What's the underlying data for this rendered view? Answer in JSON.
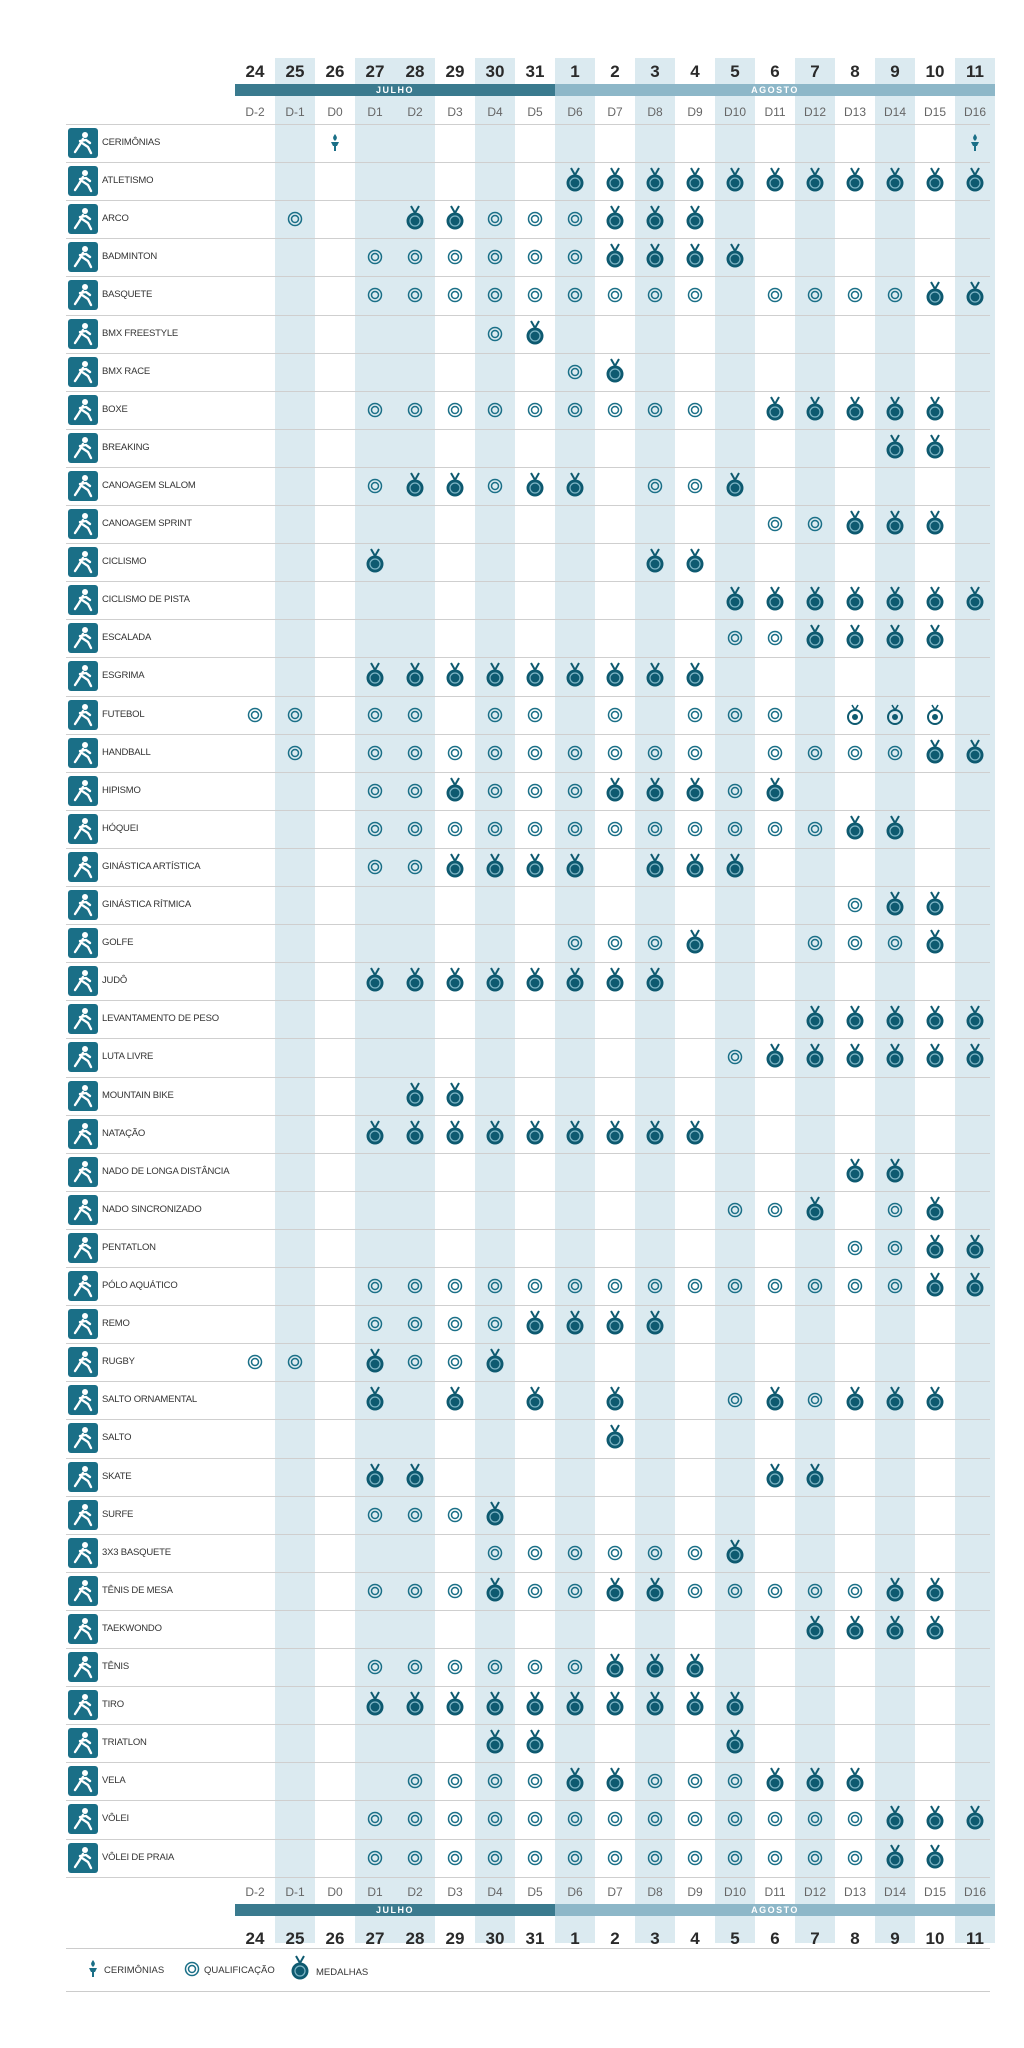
{
  "months": {
    "july": "JULHO",
    "august": "AGOSTO"
  },
  "days": [
    {
      "num": "24",
      "d": "D-2"
    },
    {
      "num": "25",
      "d": "D-1"
    },
    {
      "num": "26",
      "d": "D0"
    },
    {
      "num": "27",
      "d": "D1"
    },
    {
      "num": "28",
      "d": "D2"
    },
    {
      "num": "29",
      "d": "D3"
    },
    {
      "num": "30",
      "d": "D4"
    },
    {
      "num": "31",
      "d": "D5"
    },
    {
      "num": "1",
      "d": "D6"
    },
    {
      "num": "2",
      "d": "D7"
    },
    {
      "num": "3",
      "d": "D8"
    },
    {
      "num": "4",
      "d": "D9"
    },
    {
      "num": "5",
      "d": "D10"
    },
    {
      "num": "6",
      "d": "D11"
    },
    {
      "num": "7",
      "d": "D12"
    },
    {
      "num": "8",
      "d": "D13"
    },
    {
      "num": "9",
      "d": "D14"
    },
    {
      "num": "10",
      "d": "D15"
    },
    {
      "num": "11",
      "d": "D16"
    }
  ],
  "sports": [
    {
      "name": "CERIMÔNIAS",
      "icon": "ceremony-torch-icon",
      "schedule": "..c...............c"
    },
    {
      "name": "ATLETISMO",
      "icon": "athletics-icon",
      "schedule": "........mmmmmmmmmmm"
    },
    {
      "name": "ARCO",
      "icon": "archery-icon",
      "schedule": ".q..mmqqqmmm......."
    },
    {
      "name": "BADMINTON",
      "icon": "badminton-icon",
      "schedule": "...qqqqqqmmmm......"
    },
    {
      "name": "BASQUETE",
      "icon": "basketball-icon",
      "schedule": "...qqqqqqqqq.qqqqmm"
    },
    {
      "name": "BMX FREESTYLE",
      "icon": "bmx-freestyle-icon",
      "schedule": "......qm..........."
    },
    {
      "name": "BMX RACE",
      "icon": "bmx-race-icon",
      "schedule": "........qm........."
    },
    {
      "name": "BOXE",
      "icon": "boxing-icon",
      "schedule": "...qqqqqqqqq.mmmmm."
    },
    {
      "name": "BREAKING",
      "icon": "breaking-icon",
      "schedule": "................mm."
    },
    {
      "name": "CANOAGEM SLALOM",
      "icon": "canoe-slalom-icon",
      "schedule": "...qmmqmm.qqm......"
    },
    {
      "name": "CANOAGEM SPRINT",
      "icon": "canoe-sprint-icon",
      "schedule": ".............qqmmm."
    },
    {
      "name": "CICLISMO",
      "icon": "cycling-road-icon",
      "schedule": "...m......mm......."
    },
    {
      "name": "CICLISMO DE PISTA",
      "icon": "cycling-track-icon",
      "schedule": "............mmmmmmm"
    },
    {
      "name": "ESCALADA",
      "icon": "climbing-icon",
      "schedule": "............qqmmmm."
    },
    {
      "name": "ESGRIMA",
      "icon": "fencing-icon",
      "schedule": "...mmmmmmmmm......."
    },
    {
      "name": "FUTEBOL",
      "icon": "football-icon",
      "schedule": "qq.qq.qq.q.qqq.bbb."
    },
    {
      "name": "HANDBALL",
      "icon": "handball-icon",
      "schedule": ".q.qqqqqqqqq.qqqqmm"
    },
    {
      "name": "HIPISMO",
      "icon": "equestrian-icon",
      "schedule": "...qqmqqqmmmqm....."
    },
    {
      "name": "HÓQUEI",
      "icon": "hockey-icon",
      "schedule": "...qqqqqqqqqqqqmm.."
    },
    {
      "name": "GINÁSTICA ARTÍSTICA",
      "icon": "artistic-gymnastics-icon",
      "schedule": "...qqmmmm.mmm......"
    },
    {
      "name": "GINÁSTICA RÍTMICA",
      "icon": "rhythmic-gymnastics-icon",
      "schedule": "...............qmm."
    },
    {
      "name": "GOLFE",
      "icon": "golf-icon",
      "schedule": "........qqqm..qqqm."
    },
    {
      "name": "JUDÔ",
      "icon": "judo-icon",
      "schedule": "...mmmmmmmm........"
    },
    {
      "name": "LEVANTAMENTO DE PESO",
      "icon": "weightlifting-icon",
      "schedule": "..............mmmmm"
    },
    {
      "name": "LUTA LIVRE",
      "icon": "wrestling-icon",
      "schedule": "............qmmmmmm"
    },
    {
      "name": "MOUNTAIN BIKE",
      "icon": "mountain-bike-icon",
      "schedule": "....mm............."
    },
    {
      "name": "NATAÇÃO",
      "icon": "swimming-icon",
      "schedule": "...mmmmmmmmm......."
    },
    {
      "name": "NADO DE LONGA DISTÂNCIA",
      "icon": "marathon-swimming-icon",
      "schedule": "...............mm.."
    },
    {
      "name": "NADO SINCRONIZADO",
      "icon": "artistic-swimming-icon",
      "schedule": "............qqm.qm."
    },
    {
      "name": "PENTATLON",
      "icon": "pentathlon-icon",
      "schedule": "...............qqmm"
    },
    {
      "name": "PÓLO AQUÁTICO",
      "icon": "water-polo-icon",
      "schedule": "...qqqqqqqqqqqqqqmm"
    },
    {
      "name": "REMO",
      "icon": "rowing-icon",
      "schedule": "...qqqqmmmm........"
    },
    {
      "name": "RUGBY",
      "icon": "rugby-icon",
      "schedule": "qq.mqqm............"
    },
    {
      "name": "SALTO ORNAMENTAL",
      "icon": "diving-icon",
      "schedule": "...m.m.m.m..qmqmmm."
    },
    {
      "name": "SALTO",
      "icon": "trampoline-icon",
      "schedule": ".........m........."
    },
    {
      "name": "SKATE",
      "icon": "skateboarding-icon",
      "schedule": "...mm........mm...."
    },
    {
      "name": "SURFE",
      "icon": "surfing-icon",
      "schedule": "...qqqm............"
    },
    {
      "name": "3X3 BASQUETE",
      "icon": "basketball-3x3-icon",
      "schedule": "......qqqqqqm......"
    },
    {
      "name": "TÊNIS DE MESA",
      "icon": "table-tennis-icon",
      "schedule": "...qqqmqqmmqqqqqmm."
    },
    {
      "name": "TAEKWONDO",
      "icon": "taekwondo-icon",
      "schedule": "..............mmmm."
    },
    {
      "name": "TÊNIS",
      "icon": "tennis-icon",
      "schedule": "...qqqqqqmmm......."
    },
    {
      "name": "TIRO",
      "icon": "shooting-icon",
      "schedule": "...mmmmmmmmmm......"
    },
    {
      "name": "TRIATLON",
      "icon": "triathlon-icon",
      "schedule": "......mm....m......"
    },
    {
      "name": "VELA",
      "icon": "sailing-icon",
      "schedule": "....qqqqmmqqqmmm..."
    },
    {
      "name": "VÔLEI",
      "icon": "volleyball-icon",
      "schedule": "...qqqqqqqqqqqqqmmm"
    },
    {
      "name": "VÔLEI DE PRAIA",
      "icon": "beach-volleyball-icon",
      "schedule": "...qqqqqqqqqqqqqmm."
    }
  ],
  "legend": {
    "ceremonies": "CERIMÔNIAS",
    "qualification": "QUALIFICAÇÃO",
    "medals": "MEDALHAS"
  },
  "colors": {
    "accent": "#1a6f87",
    "medal_dark": "#0e5a70",
    "column_shade": "#dbeaf0",
    "july_bar": "#3a7a8e",
    "august_bar": "#8db7c8"
  }
}
